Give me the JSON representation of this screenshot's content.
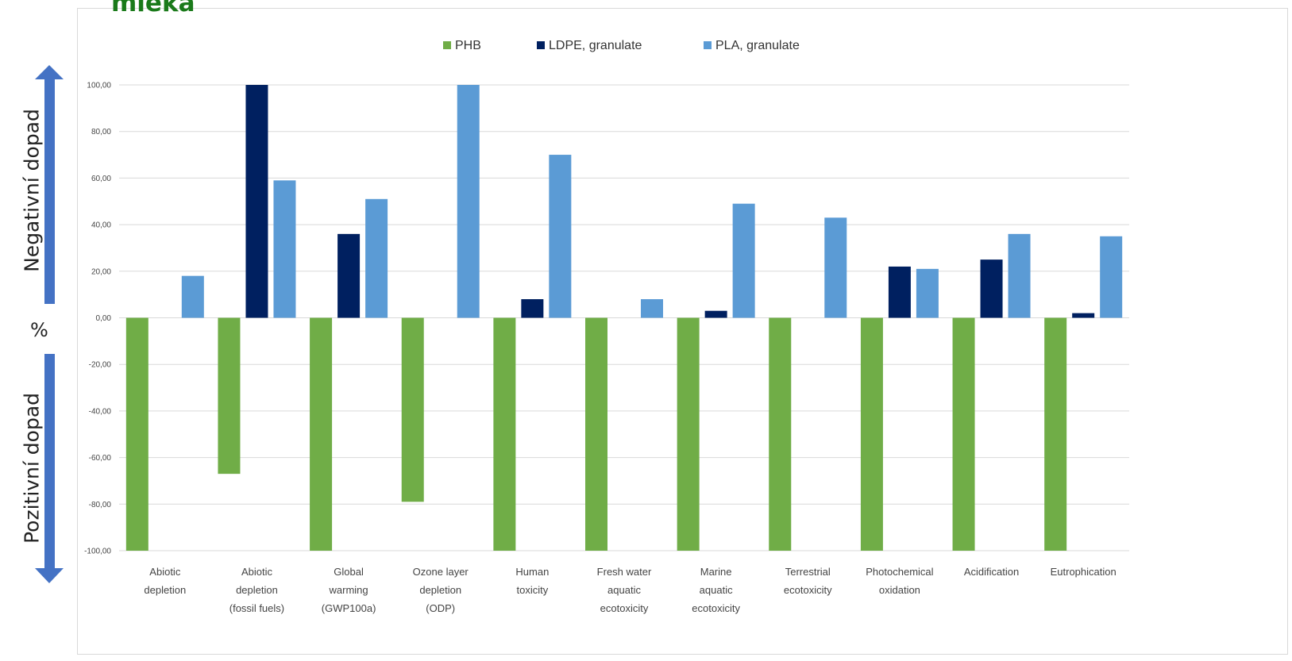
{
  "heading": "mléka",
  "side_labels": {
    "negative": "Negativní dopad",
    "positive": "Pozitivní dopad",
    "unit": "%"
  },
  "colors": {
    "PHB": "#70ad47",
    "LDPE": "#002060",
    "PLA": "#5b9bd5",
    "arrow": "#4472c4",
    "grid": "#d9d9d9"
  },
  "chart_data": {
    "type": "bar",
    "ylim": [
      -100,
      100
    ],
    "yticks": [
      "-100,00",
      "-80,00",
      "-60,00",
      "-40,00",
      "-20,00",
      "0,00",
      "20,00",
      "40,00",
      "60,00",
      "80,00",
      "100,00"
    ],
    "grid": true,
    "legend_position": "top-center",
    "categories": [
      [
        "Abiotic",
        "depletion"
      ],
      [
        "Abiotic",
        "depletion",
        "(fossil fuels)"
      ],
      [
        "Global",
        "warming",
        "(GWP100a)"
      ],
      [
        "Ozone layer",
        "depletion",
        "(ODP)"
      ],
      [
        "Human",
        "toxicity"
      ],
      [
        "Fresh water",
        "aquatic",
        "ecotoxicity"
      ],
      [
        "Marine",
        "aquatic",
        "ecotoxicity"
      ],
      [
        "Terrestrial",
        "ecotoxicity"
      ],
      [
        "Photochemical",
        "oxidation"
      ],
      [
        "Acidification"
      ],
      [
        "Eutrophication"
      ]
    ],
    "series": [
      {
        "name": "PHB",
        "values": [
          -100,
          -67,
          -100,
          -79,
          -100,
          -100,
          -100,
          -100,
          -100,
          -100,
          -100
        ]
      },
      {
        "name": "LDPE, granulate",
        "values": [
          0,
          100,
          36,
          0,
          8,
          0,
          3,
          0,
          22,
          25,
          2
        ]
      },
      {
        "name": "PLA, granulate",
        "values": [
          18,
          59,
          51,
          100,
          70,
          8,
          49,
          43,
          21,
          36,
          35
        ]
      }
    ]
  }
}
